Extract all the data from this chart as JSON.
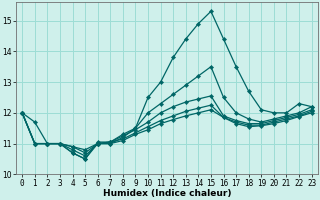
{
  "title": "",
  "xlabel": "Humidex (Indice chaleur)",
  "background_color": "#cff0eb",
  "line_color": "#006666",
  "grid_color": "#9dddd5",
  "x_values": [
    0,
    1,
    2,
    3,
    4,
    5,
    6,
    7,
    8,
    9,
    10,
    11,
    12,
    13,
    14,
    15,
    16,
    17,
    18,
    19,
    20,
    21,
    22,
    23
  ],
  "series": [
    [
      12.0,
      11.7,
      11.0,
      11.0,
      10.7,
      10.5,
      11.05,
      11.05,
      11.3,
      11.5,
      12.5,
      13.0,
      13.8,
      14.4,
      14.9,
      15.3,
      14.4,
      13.5,
      12.7,
      12.1,
      12.0,
      12.0,
      12.3,
      12.2
    ],
    [
      12.0,
      11.0,
      11.0,
      11.0,
      10.7,
      10.5,
      11.0,
      11.0,
      11.2,
      11.5,
      12.0,
      12.3,
      12.6,
      12.9,
      13.2,
      13.5,
      12.5,
      12.0,
      11.8,
      11.7,
      11.8,
      11.9,
      12.0,
      12.2
    ],
    [
      12.0,
      11.0,
      11.0,
      11.0,
      10.8,
      10.6,
      11.0,
      11.05,
      11.25,
      11.45,
      11.7,
      12.0,
      12.2,
      12.35,
      12.45,
      12.55,
      11.9,
      11.75,
      11.65,
      11.65,
      11.75,
      11.85,
      11.95,
      12.1
    ],
    [
      12.0,
      11.0,
      11.0,
      11.0,
      10.9,
      10.7,
      11.0,
      11.05,
      11.15,
      11.35,
      11.55,
      11.75,
      11.9,
      12.05,
      12.15,
      12.25,
      11.85,
      11.7,
      11.6,
      11.6,
      11.7,
      11.8,
      11.9,
      12.05
    ],
    [
      12.0,
      11.0,
      11.0,
      11.0,
      10.9,
      10.8,
      11.0,
      11.0,
      11.1,
      11.3,
      11.45,
      11.65,
      11.78,
      11.9,
      12.0,
      12.1,
      11.85,
      11.65,
      11.55,
      11.58,
      11.65,
      11.75,
      11.88,
      12.0
    ]
  ],
  "ylim": [
    10.0,
    15.6
  ],
  "xlim": [
    -0.5,
    23.5
  ],
  "yticks": [
    10,
    11,
    12,
    13,
    14,
    15
  ],
  "xticks": [
    0,
    1,
    2,
    3,
    4,
    5,
    6,
    7,
    8,
    9,
    10,
    11,
    12,
    13,
    14,
    15,
    16,
    17,
    18,
    19,
    20,
    21,
    22,
    23
  ],
  "xlabel_fontsize": 6.5,
  "tick_fontsize": 5.5,
  "linewidth": 0.9,
  "markersize": 2.2
}
